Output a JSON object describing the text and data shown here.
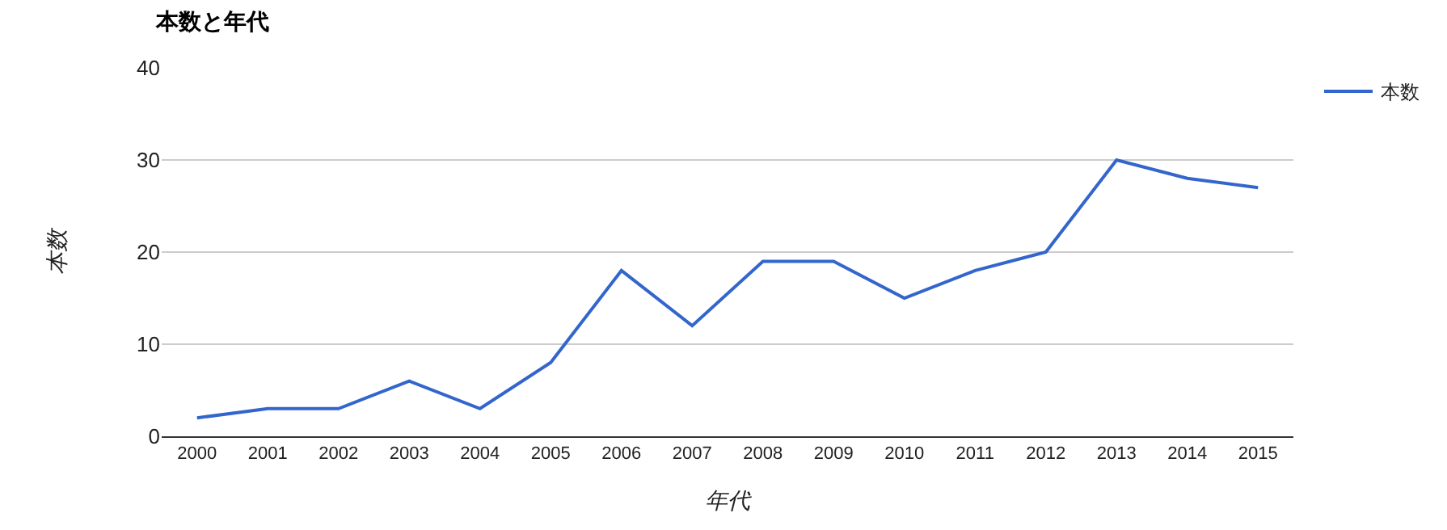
{
  "chart_data": {
    "type": "line",
    "title": "本数と年代",
    "xlabel": "年代",
    "ylabel": "本数",
    "categories": [
      "2000",
      "2001",
      "2002",
      "2003",
      "2004",
      "2005",
      "2006",
      "2007",
      "2008",
      "2009",
      "2010",
      "2011",
      "2012",
      "2013",
      "2014",
      "2015"
    ],
    "series": [
      {
        "name": "本数",
        "color": "#3366cc",
        "values": [
          2,
          3,
          3,
          6,
          3,
          8,
          18,
          12,
          19,
          19,
          15,
          18,
          20,
          30,
          28,
          27
        ]
      }
    ],
    "ylim": [
      0,
      40
    ],
    "yticks": [
      0,
      10,
      20,
      30,
      40
    ],
    "grid": "y",
    "legend": "top right",
    "marker": "none",
    "line_style": "solid"
  }
}
